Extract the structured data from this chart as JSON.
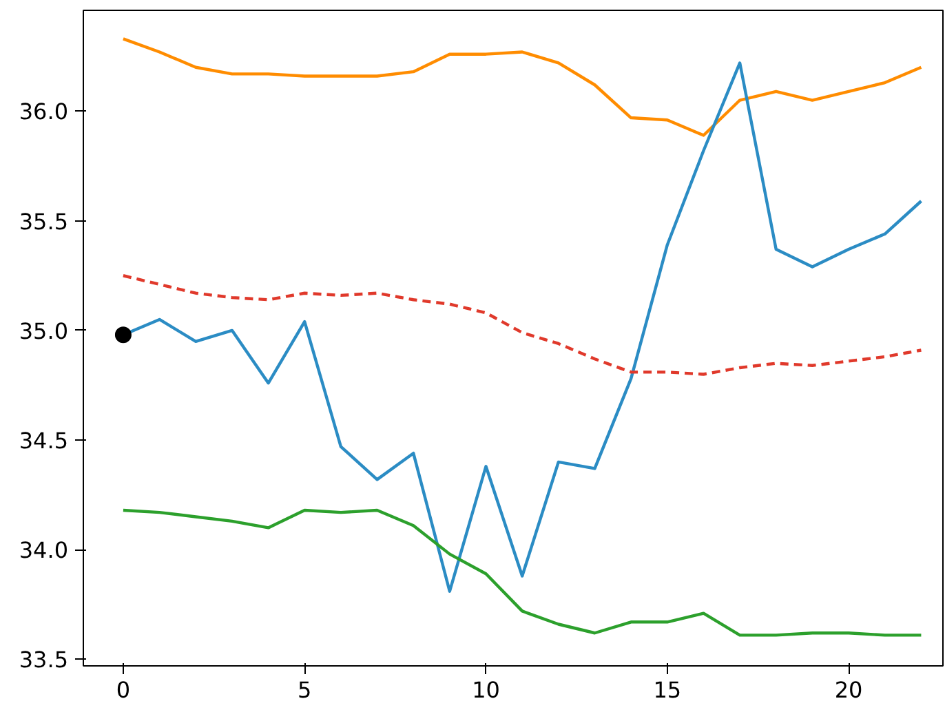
{
  "chart_data": {
    "type": "line",
    "x": [
      0,
      1,
      2,
      3,
      4,
      5,
      6,
      7,
      8,
      9,
      10,
      11,
      12,
      13,
      14,
      15,
      16,
      17,
      18,
      19,
      20,
      21,
      22
    ],
    "series": [
      {
        "color": "#ff8c00",
        "values": [
          36.33,
          36.27,
          36.2,
          36.17,
          36.17,
          36.16,
          36.16,
          36.16,
          36.18,
          36.26,
          36.26,
          36.27,
          36.22,
          36.12,
          35.97,
          35.96,
          35.89,
          36.05,
          36.09,
          36.05,
          36.09,
          36.13,
          36.2
        ]
      },
      {
        "color": "#2b8cc4",
        "values": [
          34.98,
          35.05,
          34.95,
          35.0,
          34.76,
          35.04,
          34.47,
          34.32,
          34.44,
          33.81,
          34.38,
          33.88,
          34.4,
          34.37,
          34.78,
          35.39,
          35.82,
          36.22,
          35.37,
          35.29,
          35.37,
          35.44,
          35.59
        ]
      },
      {
        "color": "#e0392b",
        "line_style": "dashed",
        "values": [
          35.25,
          35.21,
          35.17,
          35.15,
          35.14,
          35.17,
          35.16,
          35.17,
          35.14,
          35.12,
          35.08,
          34.99,
          34.94,
          34.87,
          34.81,
          34.81,
          34.8,
          34.83,
          34.85,
          34.84,
          34.86,
          34.88,
          34.91
        ]
      },
      {
        "color": "#2ca02c",
        "values": [
          34.18,
          34.17,
          34.15,
          34.13,
          34.1,
          34.18,
          34.17,
          34.18,
          34.11,
          33.98,
          33.89,
          33.72,
          33.66,
          33.62,
          33.67,
          33.67,
          33.71,
          33.61,
          33.61,
          33.62,
          33.62,
          33.61,
          33.61
        ]
      },
      {
        "type": "scatter",
        "marker": "circle",
        "color": "#000000",
        "x": [
          0
        ],
        "values": [
          34.98
        ]
      }
    ],
    "xlim": [
      -1.1,
      22.6
    ],
    "ylim": [
      33.47,
      36.46
    ],
    "xticks": [
      0,
      5,
      10,
      15,
      20
    ],
    "yticks": [
      33.5,
      {
        "value": 34,
        "label": "34.0"
      },
      34.5,
      {
        "value": 35,
        "label": "35.0"
      },
      35.5,
      {
        "value": 36,
        "label": "36.0"
      }
    ],
    "grid": false,
    "line_style": "solid"
  }
}
